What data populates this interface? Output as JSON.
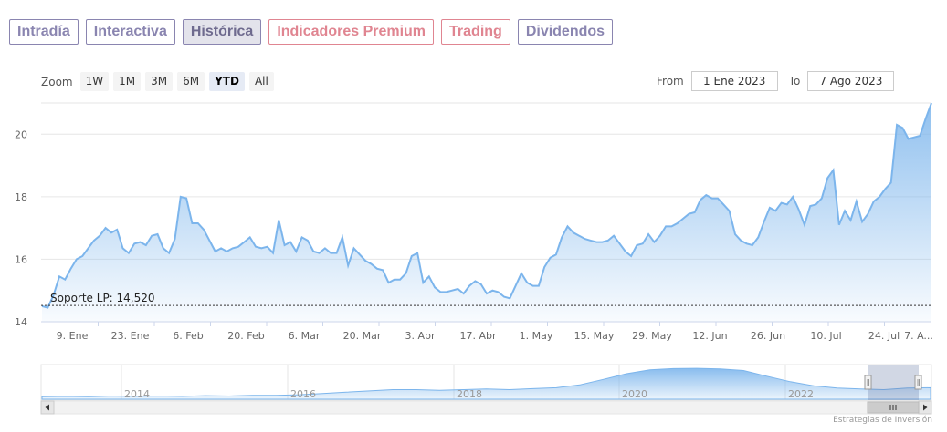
{
  "tabs": [
    {
      "label": "Intradía"
    },
    {
      "label": "Interactiva"
    },
    {
      "label": "Histórica"
    },
    {
      "label": "Indicadores Premium"
    },
    {
      "label": "Trading"
    },
    {
      "label": "Dividendos"
    }
  ],
  "zoom": {
    "label": "Zoom",
    "buttons": [
      "1W",
      "1M",
      "3M",
      "6M",
      "YTD",
      "All"
    ],
    "selected": "YTD"
  },
  "range": {
    "from_label": "From",
    "from_value": "1 Ene 2023",
    "to_label": "To",
    "to_value": "7 Ago 2023"
  },
  "credits": "Estrategias de Inversión",
  "chart_data": {
    "type": "area",
    "ylim": [
      14,
      21
    ],
    "yticks": [
      14,
      16,
      18,
      20
    ],
    "xlabels": [
      "9. Ene",
      "23. Ene",
      "6. Feb",
      "20. Feb",
      "6. Mar",
      "20. Mar",
      "3. Abr",
      "17. Abr",
      "1. May",
      "15. May",
      "29. May",
      "12. Jun",
      "26. Jun",
      "10. Jul",
      "24. Jul",
      "7. A..."
    ],
    "grid": true,
    "colors": {
      "line": "#7cb5ec",
      "fill_top": "#7cb5ec",
      "support": "#333333"
    },
    "support_line": {
      "label": "Soporte LP: 14,520",
      "value": 14.52
    },
    "series": [
      {
        "values": [
          14.5,
          14.45,
          14.85,
          15.45,
          15.35,
          15.7,
          16.0,
          16.1,
          16.35,
          16.6,
          16.75,
          17.0,
          16.85,
          16.95,
          16.35,
          16.2,
          16.5,
          16.55,
          16.45,
          16.75,
          16.8,
          16.35,
          16.2,
          16.65,
          18.0,
          17.95,
          17.15,
          17.15,
          16.95,
          16.6,
          16.25,
          16.35,
          16.25,
          16.35,
          16.4,
          16.55,
          16.7,
          16.4,
          16.35,
          16.4,
          16.2,
          17.25,
          16.45,
          16.55,
          16.25,
          16.7,
          16.6,
          16.25,
          16.2,
          16.35,
          16.2,
          16.2,
          16.7,
          15.8,
          16.35,
          16.15,
          15.95,
          15.85,
          15.7,
          15.65,
          15.25,
          15.35,
          15.35,
          15.55,
          16.1,
          16.2,
          15.25,
          15.45,
          15.1,
          14.95,
          14.95,
          15.0,
          15.05,
          14.9,
          15.15,
          15.3,
          15.2,
          14.9,
          15.0,
          14.95,
          14.8,
          14.75,
          15.15,
          15.55,
          15.25,
          15.15,
          15.15,
          15.75,
          16.05,
          16.15,
          16.7,
          17.05,
          16.85,
          16.75,
          16.65,
          16.6,
          16.55,
          16.55,
          16.6,
          16.75,
          16.5,
          16.25,
          16.1,
          16.45,
          16.5,
          16.8,
          16.55,
          16.75,
          17.05,
          17.05,
          17.15,
          17.3,
          17.45,
          17.5,
          17.9,
          18.05,
          17.95,
          17.95,
          17.75,
          17.55,
          16.8,
          16.6,
          16.5,
          16.45,
          16.7,
          17.2,
          17.65,
          17.55,
          17.8,
          17.75,
          18.0,
          17.6,
          17.1,
          17.7,
          17.75,
          17.95,
          18.6,
          18.85,
          17.1,
          17.55,
          17.25,
          17.85,
          17.2,
          17.45,
          17.85,
          18.0,
          18.25,
          18.45,
          20.3,
          20.2,
          19.85,
          19.9,
          19.95,
          20.5,
          21.0
        ]
      }
    ],
    "navigator": {
      "xlabels": [
        "2014",
        "2016",
        "2018",
        "2020",
        "2022"
      ],
      "values": [
        0.08,
        0.09,
        0.08,
        0.1,
        0.09,
        0.1,
        0.09,
        0.11,
        0.1,
        0.12,
        0.12,
        0.14,
        0.18,
        0.22,
        0.26,
        0.3,
        0.3,
        0.28,
        0.3,
        0.32,
        0.3,
        0.33,
        0.36,
        0.45,
        0.62,
        0.8,
        0.92,
        0.96,
        0.97,
        0.95,
        0.9,
        0.72,
        0.55,
        0.42,
        0.35,
        0.32,
        0.3,
        0.35,
        0.36
      ]
    }
  }
}
